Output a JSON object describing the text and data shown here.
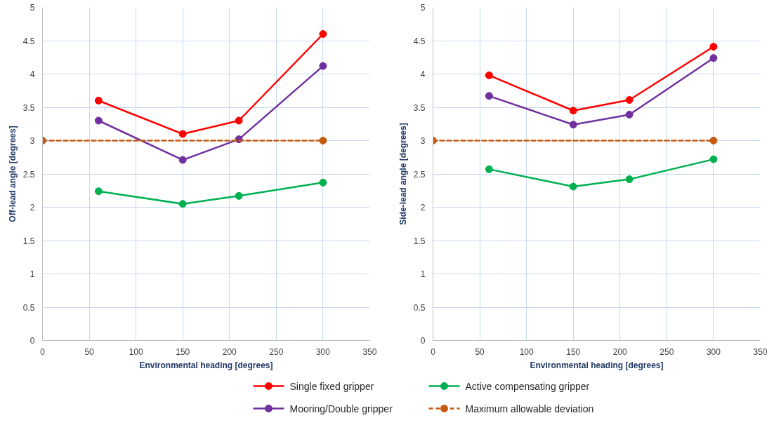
{
  "chart_data": [
    {
      "type": "line",
      "xlabel": "Environmental heading [degrees]",
      "ylabel": "Off-lead angle [degrees]",
      "xlim": [
        0,
        350
      ],
      "xticks": [
        0,
        50,
        100,
        150,
        200,
        250,
        300,
        350
      ],
      "ylim": [
        0,
        5
      ],
      "yticks": [
        0,
        0.5,
        1,
        1.5,
        2,
        2.5,
        3,
        3.5,
        4,
        4.5,
        5
      ],
      "grid": true,
      "legend": "bottom",
      "marker": "circle",
      "series": [
        {
          "name": "Single fixed gripper",
          "color": "#ff0000",
          "x": [
            60,
            150,
            210,
            300
          ],
          "values": [
            3.6,
            3.1,
            3.3,
            4.6
          ]
        },
        {
          "name": "Active compensating gripper",
          "color": "#00b050",
          "x": [
            60,
            150,
            210,
            300
          ],
          "values": [
            2.24,
            2.05,
            2.17,
            2.37
          ]
        },
        {
          "name": "Mooring/Double gripper",
          "color": "#7030a0",
          "x": [
            60,
            150,
            210,
            300
          ],
          "values": [
            3.3,
            2.71,
            3.02,
            4.12
          ]
        },
        {
          "name": "Maximum allowable deviation",
          "color": "#c55a11",
          "line_style": "dashed",
          "x": [
            0,
            300
          ],
          "values": [
            3,
            3
          ]
        }
      ]
    },
    {
      "type": "line",
      "xlabel": "Environmental heading [degrees]",
      "ylabel": "Side-lead angle [degrees]",
      "xlim": [
        0,
        350
      ],
      "xticks": [
        0,
        50,
        100,
        150,
        200,
        250,
        300,
        350
      ],
      "ylim": [
        0,
        5
      ],
      "yticks": [
        0,
        0.5,
        1,
        1.5,
        2,
        2.5,
        3,
        3.5,
        4,
        4.5,
        5
      ],
      "grid": true,
      "marker": "circle",
      "series": [
        {
          "color": "#ff0000",
          "x": [
            60,
            150,
            210,
            300
          ],
          "values": [
            3.98,
            3.45,
            3.61,
            4.41
          ]
        },
        {
          "color": "#00b050",
          "x": [
            60,
            150,
            210,
            300
          ],
          "values": [
            2.57,
            2.31,
            2.42,
            2.72
          ]
        },
        {
          "color": "#7030a0",
          "x": [
            60,
            150,
            210,
            300
          ],
          "values": [
            3.67,
            3.24,
            3.39,
            4.24
          ]
        },
        {
          "color": "#c55a11",
          "line_style": "dashed",
          "x": [
            0,
            300
          ],
          "values": [
            3,
            3
          ]
        }
      ]
    }
  ]
}
